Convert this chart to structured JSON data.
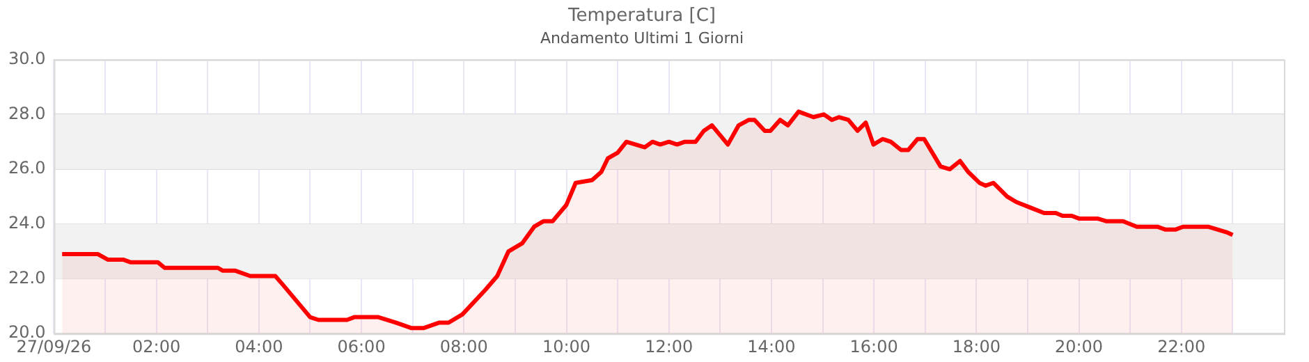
{
  "chart_data": {
    "type": "area",
    "title": "Temperatura [C]",
    "subtitle": "Andamento Ultimi 1 Giorni",
    "x": [
      0.16,
      0.86,
      1.05,
      1.35,
      1.5,
      2.03,
      2.16,
      3.2,
      3.29,
      3.53,
      3.83,
      4.32,
      4.46,
      5.0,
      5.16,
      5.72,
      5.86,
      6.33,
      6.67,
      6.98,
      7.21,
      7.52,
      7.7,
      7.97,
      8.42,
      8.65,
      8.87,
      9.14,
      9.37,
      9.55,
      9.73,
      10.0,
      10.18,
      10.5,
      10.68,
      10.81,
      11.0,
      11.17,
      11.53,
      11.68,
      11.83,
      12.0,
      12.16,
      12.31,
      12.52,
      12.68,
      12.84,
      13.15,
      13.36,
      13.56,
      13.67,
      13.87,
      13.98,
      14.17,
      14.32,
      14.53,
      14.82,
      15.02,
      15.18,
      15.32,
      15.5,
      15.68,
      15.84,
      15.99,
      16.17,
      16.33,
      16.53,
      16.67,
      16.85,
      16.98,
      17.3,
      17.48,
      17.68,
      17.84,
      18.06,
      18.18,
      18.33,
      18.6,
      18.78,
      19.05,
      19.32,
      19.55,
      19.68,
      19.86,
      20.0,
      20.36,
      20.54,
      20.86,
      21.13,
      21.53,
      21.68,
      21.89,
      22.03,
      22.52,
      22.7,
      22.88,
      23.0
    ],
    "series": [
      {
        "color": "#ff0000",
        "values": [
          22.9,
          22.9,
          22.7,
          22.7,
          22.6,
          22.6,
          22.4,
          22.4,
          22.3,
          22.3,
          22.1,
          22.1,
          21.8,
          20.6,
          20.5,
          20.5,
          20.6,
          20.6,
          20.4,
          20.2,
          20.2,
          20.4,
          20.4,
          20.7,
          21.6,
          22.1,
          23.0,
          23.3,
          23.9,
          24.1,
          24.1,
          24.7,
          25.5,
          25.6,
          25.9,
          26.4,
          26.6,
          27.0,
          26.8,
          27.0,
          26.9,
          27.0,
          26.9,
          27.0,
          27.0,
          27.4,
          27.6,
          26.9,
          27.6,
          27.8,
          27.8,
          27.4,
          27.4,
          27.8,
          27.6,
          28.1,
          27.9,
          28.0,
          27.8,
          27.9,
          27.8,
          27.4,
          27.7,
          26.9,
          27.1,
          27.0,
          26.7,
          26.7,
          27.1,
          27.1,
          26.1,
          26.0,
          26.3,
          25.9,
          25.5,
          25.4,
          25.5,
          25.0,
          24.8,
          24.6,
          24.4,
          24.4,
          24.3,
          24.3,
          24.2,
          24.2,
          24.1,
          24.1,
          23.9,
          23.9,
          23.8,
          23.8,
          23.9,
          23.9,
          23.8,
          23.7,
          23.6
        ]
      }
    ],
    "xlim": [
      0,
      24
    ],
    "xticks": [
      {
        "value": 0,
        "label": "27/09/26"
      },
      {
        "value": 1,
        "label": null
      },
      {
        "value": 2,
        "label": "02:00"
      },
      {
        "value": 3,
        "label": null
      },
      {
        "value": 4,
        "label": "04:00"
      },
      {
        "value": 5,
        "label": null
      },
      {
        "value": 6,
        "label": "06:00"
      },
      {
        "value": 7,
        "label": null
      },
      {
        "value": 8,
        "label": "08:00"
      },
      {
        "value": 9,
        "label": null
      },
      {
        "value": 10,
        "label": "10:00"
      },
      {
        "value": 11,
        "label": null
      },
      {
        "value": 12,
        "label": "12:00"
      },
      {
        "value": 13,
        "label": null
      },
      {
        "value": 14,
        "label": "14:00"
      },
      {
        "value": 15,
        "label": null
      },
      {
        "value": 16,
        "label": "16:00"
      },
      {
        "value": 17,
        "label": null
      },
      {
        "value": 18,
        "label": "18:00"
      },
      {
        "value": 19,
        "label": null
      },
      {
        "value": 20,
        "label": "20:00"
      },
      {
        "value": 21,
        "label": null
      },
      {
        "value": 22,
        "label": "22:00"
      },
      {
        "value": 23,
        "label": null
      }
    ],
    "ylim": [
      20,
      30
    ],
    "yticks": [
      {
        "value": 20,
        "label": "20.0"
      },
      {
        "value": 22,
        "label": "22.0"
      },
      {
        "value": 24,
        "label": "24.0"
      },
      {
        "value": 26,
        "label": "26.0"
      },
      {
        "value": 28,
        "label": "28.0"
      },
      {
        "value": 30,
        "label": "30.0"
      }
    ],
    "bands": [
      {
        "axis": "y",
        "from": 22,
        "to": 24,
        "color": "#f2f2f2"
      },
      {
        "axis": "y",
        "from": 26,
        "to": 28,
        "color": "#f2f2f2"
      }
    ],
    "grid": true,
    "legend": false,
    "marker": "none",
    "line_style": "solid"
  }
}
